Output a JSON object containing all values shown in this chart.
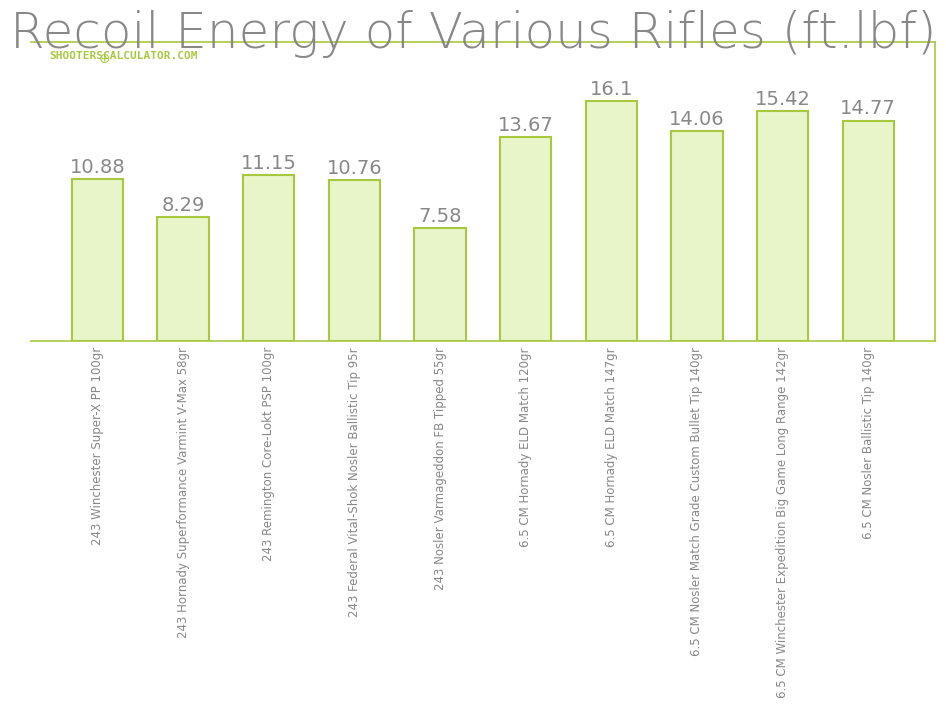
{
  "title": "Recoil Energy of Various Rifles (ft.lbf)",
  "title_color": "#888888",
  "title_fontsize": 36,
  "categories": [
    "243 Winchester Super-X PP 100gr",
    "243 Hornady Superformance Varmint V-Max 58gr",
    "243 Remington Core-Lokt PSP 100gr",
    "243 Federal Vital-Shok Nosler Ballistic Tip 95r",
    "243 Nosler Varmageddon FB Tipped 55gr",
    "6.5 CM Hornady ELD Match 120gr",
    "6.5 CM Hornady ELD Match 147gr",
    "6.5 CM Nosler Match Grade Custom Bullet Tip 140gr",
    "6.5 CM Winchester Expedition Big Game Long Range 142gr",
    "6.5 CM Nosler Ballistic Tip 140gr"
  ],
  "values": [
    10.88,
    8.29,
    11.15,
    10.76,
    7.58,
    13.67,
    16.1,
    14.06,
    15.42,
    14.77
  ],
  "bar_color": "#e8f5c8",
  "bar_edge_color": "#a8c840",
  "bar_edge_width": 1.5,
  "label_color": "#888888",
  "label_fontsize": 14,
  "watermark_text": "SHOOTERSCALCULATOR.COM",
  "watermark_color": "#a8c840",
  "watermark_fontsize": 8,
  "grid_color": "#dddddd",
  "background_color": "#ffffff",
  "plot_background": "#ffffff",
  "frame_color": "#a8c840",
  "ylim": [
    0,
    20
  ],
  "tick_label_fontsize": 8.5,
  "tick_label_color": "#888888"
}
